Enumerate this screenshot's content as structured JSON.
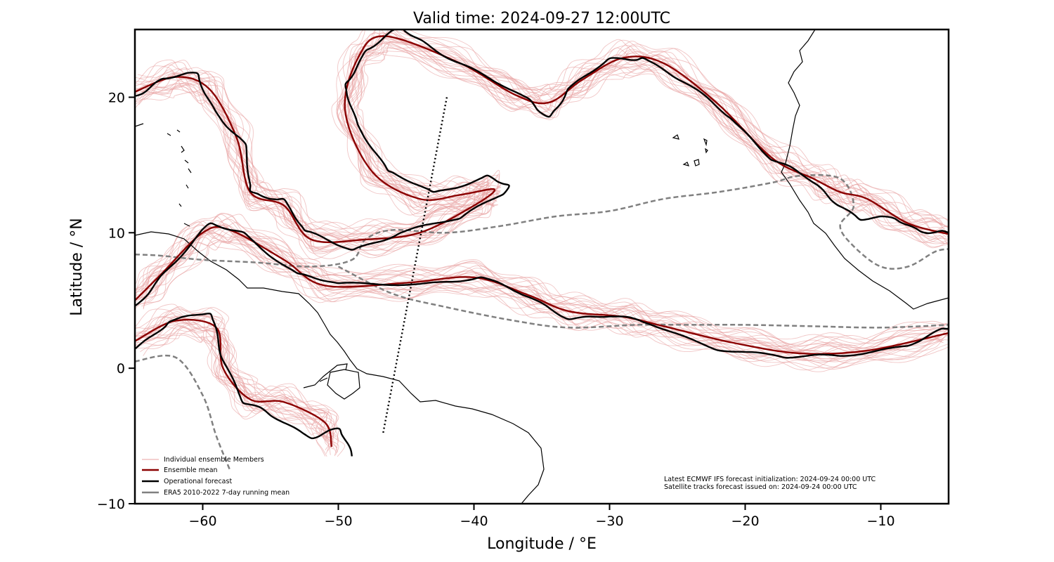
{
  "title": "Valid time: 2024-09-27 12:00UTC",
  "axes": {
    "xlabel": "Longitude / °E",
    "ylabel": "Latitude / °N",
    "xlim": [
      -65,
      -5
    ],
    "ylim": [
      -10,
      25
    ],
    "xticks": [
      -60,
      -50,
      -40,
      -30,
      -20,
      -10
    ],
    "yticks": [
      -10,
      0,
      10,
      20
    ],
    "xtick_labels": [
      "−60",
      "−50",
      "−40",
      "−30",
      "−20",
      "−10"
    ],
    "ytick_labels": [
      "−10",
      "0",
      "10",
      "20"
    ]
  },
  "legend": {
    "placement": "lower-left",
    "items": [
      {
        "label": "Individual ensemble Members",
        "color": "#e8a0a0"
      },
      {
        "label": "Ensemble mean",
        "color": "#8b0000"
      },
      {
        "label": "Operational forecast",
        "color": "#000000"
      },
      {
        "label": "ERA5 2010-2022 7-day running mean",
        "color": "#808080"
      }
    ]
  },
  "info": {
    "line1": "Latest ECMWF IFS forecast initialization: 2024-09-24 00:00 UTC",
    "line2": "Satellite tracks forecast issued on: 2024-09-24 00:00 UTC"
  },
  "colors": {
    "member": "#e8a0a0",
    "mean": "#8b0000",
    "operational": "#000000",
    "era5": "#808080",
    "coast": "#000000"
  },
  "chart_data": {
    "type": "map-contour",
    "satellite_track": [
      [
        -42.0,
        20.0
      ],
      [
        -46.7,
        -4.8
      ]
    ],
    "ensemble_mean": [
      [
        [
          -65,
          20.4
        ],
        [
          -62,
          21.5
        ],
        [
          -59.5,
          20.6
        ],
        [
          -57.5,
          17
        ],
        [
          -56.5,
          13
        ],
        [
          -54,
          12
        ],
        [
          -52,
          9.5
        ],
        [
          -48,
          9.5
        ],
        [
          -44,
          10
        ],
        [
          -40,
          12
        ],
        [
          -38.5,
          13.2
        ],
        [
          -41,
          12.8
        ],
        [
          -44,
          12.5
        ],
        [
          -47.5,
          14.5
        ],
        [
          -49.5,
          19
        ],
        [
          -48.5,
          23
        ],
        [
          -46.5,
          24.5
        ],
        [
          -41,
          22.5
        ],
        [
          -37,
          20.2
        ],
        [
          -34.5,
          19.6
        ],
        [
          -32,
          21.3
        ],
        [
          -29,
          22.9
        ],
        [
          -26,
          22.5
        ],
        [
          -22,
          19.5
        ],
        [
          -18,
          15.5
        ],
        [
          -15,
          14
        ],
        [
          -13,
          13
        ],
        [
          -11,
          12.5
        ],
        [
          -8,
          10.7
        ],
        [
          -5,
          9.9
        ]
      ],
      [
        [
          -65,
          2
        ],
        [
          -62,
          3.5
        ],
        [
          -59,
          3
        ],
        [
          -58.5,
          0
        ],
        [
          -56.5,
          -2.3
        ],
        [
          -54,
          -2.5
        ],
        [
          -51,
          -4
        ],
        [
          -50.5,
          -5.8
        ]
      ],
      [
        [
          -65,
          5
        ],
        [
          -63,
          7
        ],
        [
          -60,
          10
        ],
        [
          -58,
          10.2
        ],
        [
          -54,
          8
        ],
        [
          -51,
          6.1
        ],
        [
          -45,
          6.3
        ],
        [
          -40,
          6.7
        ],
        [
          -36,
          5.4
        ],
        [
          -33,
          4.2
        ],
        [
          -29,
          3.8
        ],
        [
          -26,
          3.1
        ],
        [
          -21,
          1.9
        ],
        [
          -16,
          1.1
        ],
        [
          -11,
          1.3
        ],
        [
          -5,
          2.6
        ]
      ]
    ],
    "operational": [
      [
        [
          -65,
          20.2
        ],
        [
          -63,
          21.3
        ],
        [
          -60.5,
          21.7
        ],
        [
          -59,
          19
        ],
        [
          -57,
          16.5
        ],
        [
          -56.5,
          13
        ],
        [
          -54,
          12.5
        ],
        [
          -52.5,
          10
        ],
        [
          -49,
          8.8
        ],
        [
          -45.5,
          10
        ],
        [
          -41,
          11
        ],
        [
          -37.5,
          13.3
        ],
        [
          -39,
          14.2
        ],
        [
          -43,
          13
        ],
        [
          -46.5,
          14.5
        ],
        [
          -48.5,
          18
        ],
        [
          -49.5,
          21
        ],
        [
          -48,
          23.5
        ],
        [
          -45.5,
          25
        ],
        [
          -43.5,
          24
        ],
        [
          -40,
          22
        ],
        [
          -36,
          19.7
        ],
        [
          -34.5,
          18.6
        ],
        [
          -33,
          20.5
        ],
        [
          -30,
          22.8
        ],
        [
          -27.5,
          23
        ],
        [
          -24.5,
          21
        ],
        [
          -21,
          18.5
        ],
        [
          -18,
          15.5
        ],
        [
          -15.5,
          14
        ],
        [
          -13.5,
          12.5
        ],
        [
          -11.5,
          11
        ],
        [
          -9,
          11
        ],
        [
          -7,
          10.2
        ],
        [
          -5,
          10
        ]
      ],
      [
        [
          -65,
          1.5
        ],
        [
          -62.5,
          3.5
        ],
        [
          -59.5,
          4
        ],
        [
          -58.5,
          1
        ],
        [
          -57,
          -2.5
        ],
        [
          -55,
          -3.5
        ],
        [
          -52,
          -5
        ],
        [
          -50,
          -4.5
        ],
        [
          -49,
          -6.5
        ]
      ],
      [
        [
          -65,
          4.5
        ],
        [
          -63,
          7
        ],
        [
          -59.5,
          10.5
        ],
        [
          -57,
          10
        ],
        [
          -53,
          7
        ],
        [
          -50,
          6.1
        ],
        [
          -44,
          6.3
        ],
        [
          -39.5,
          6.7
        ],
        [
          -36,
          5.2
        ],
        [
          -33,
          3.8
        ],
        [
          -30,
          3.8
        ],
        [
          -27,
          3.3
        ],
        [
          -22,
          1.5
        ],
        [
          -17,
          0.7
        ],
        [
          -13,
          1
        ],
        [
          -8,
          1.7
        ],
        [
          -5,
          2.9
        ]
      ]
    ],
    "era5": [
      [
        [
          -65,
          8.4
        ],
        [
          -63,
          8.3
        ],
        [
          -60,
          8
        ],
        [
          -56,
          7.8
        ],
        [
          -52,
          7.5
        ],
        [
          -49,
          8
        ],
        [
          -48,
          9.5
        ],
        [
          -46,
          10.2
        ],
        [
          -42,
          10
        ],
        [
          -38,
          10.5
        ],
        [
          -34,
          11.2
        ],
        [
          -30,
          11.6
        ],
        [
          -26,
          12.5
        ],
        [
          -22,
          13
        ],
        [
          -18,
          13.7
        ],
        [
          -16,
          14.2
        ],
        [
          -13,
          14
        ],
        [
          -12,
          12
        ],
        [
          -13,
          10.5
        ],
        [
          -12,
          9
        ],
        [
          -10,
          7.5
        ],
        [
          -8,
          7.5
        ],
        [
          -6,
          8.6
        ],
        [
          -5,
          8.8
        ]
      ],
      [
        [
          -65,
          0.5
        ],
        [
          -62,
          0.8
        ],
        [
          -60,
          -2
        ],
        [
          -59,
          -5
        ],
        [
          -58,
          -7.5
        ]
      ],
      [
        [
          -50,
          7.5
        ],
        [
          -46,
          5.5
        ],
        [
          -42,
          4.5
        ],
        [
          -37,
          3.5
        ],
        [
          -33,
          3
        ],
        [
          -28,
          3.2
        ],
        [
          -24,
          3.2
        ],
        [
          -20,
          3.2
        ],
        [
          -15,
          3.1
        ],
        [
          -10,
          3
        ],
        [
          -5,
          3.2
        ]
      ]
    ]
  }
}
